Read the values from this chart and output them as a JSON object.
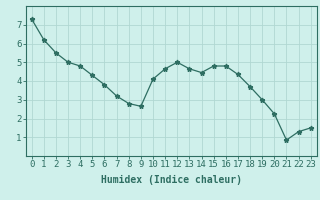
{
  "x": [
    0,
    1,
    2,
    3,
    4,
    5,
    6,
    7,
    8,
    9,
    10,
    11,
    12,
    13,
    14,
    15,
    16,
    17,
    18,
    19,
    20,
    21,
    22,
    23
  ],
  "y": [
    7.3,
    6.2,
    5.5,
    5.0,
    4.8,
    4.3,
    3.8,
    3.2,
    2.8,
    2.65,
    4.1,
    4.65,
    5.0,
    4.65,
    4.45,
    4.8,
    4.8,
    4.35,
    3.7,
    3.0,
    2.25,
    0.85,
    1.3,
    1.5
  ],
  "line_color": "#2e6e62",
  "marker": "*",
  "marker_size": 3.5,
  "line_width": 0.9,
  "bg_color": "#cff0eb",
  "grid_color": "#b0d8d2",
  "xlabel": "Humidex (Indice chaleur)",
  "xlim": [
    -0.5,
    23.5
  ],
  "ylim": [
    0,
    8
  ],
  "yticks": [
    1,
    2,
    3,
    4,
    5,
    6,
    7
  ],
  "xticks": [
    0,
    1,
    2,
    3,
    4,
    5,
    6,
    7,
    8,
    9,
    10,
    11,
    12,
    13,
    14,
    15,
    16,
    17,
    18,
    19,
    20,
    21,
    22,
    23
  ],
  "xlabel_fontsize": 7,
  "tick_fontsize": 6.5,
  "label_color": "#2e6e62"
}
